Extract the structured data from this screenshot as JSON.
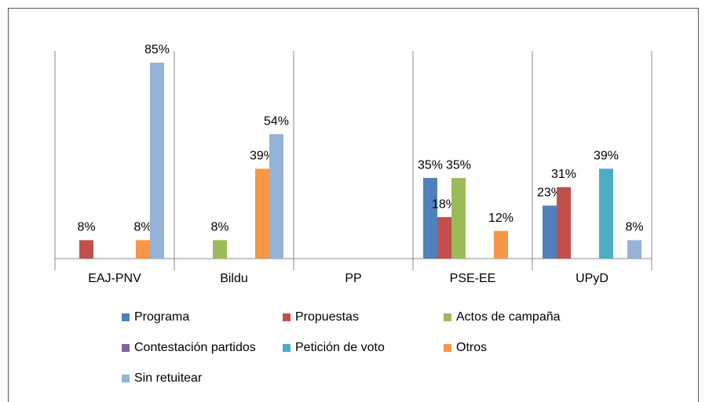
{
  "chart_data": {
    "type": "bar",
    "categories": [
      "EAJ-PNV",
      "Bildu",
      "PP",
      "PSE-EE",
      "UPyD"
    ],
    "series": [
      {
        "name": "Programa",
        "color": "#4f81bd",
        "values": [
          null,
          null,
          null,
          35,
          23
        ],
        "value_labels": [
          null,
          null,
          null,
          "35%",
          "23%"
        ]
      },
      {
        "name": "Propuestas",
        "color": "#c0504d",
        "values": [
          8,
          null,
          null,
          18,
          31
        ],
        "value_labels": [
          "8%",
          null,
          null,
          "18%",
          "31%"
        ]
      },
      {
        "name": "Actos de campaña",
        "color": "#9bbb59",
        "values": [
          null,
          8,
          null,
          35,
          null
        ],
        "value_labels": [
          null,
          "8%",
          null,
          "35%",
          null
        ]
      },
      {
        "name": "Contestación partidos",
        "color": "#8064a2",
        "values": [
          null,
          null,
          null,
          null,
          null
        ],
        "value_labels": [
          null,
          null,
          null,
          null,
          null
        ]
      },
      {
        "name": "Petición de voto",
        "color": "#4bacc6",
        "values": [
          null,
          null,
          null,
          null,
          39
        ],
        "value_labels": [
          null,
          null,
          null,
          null,
          "39%"
        ]
      },
      {
        "name": "Otros",
        "color": "#f79646",
        "values": [
          8,
          39,
          null,
          12,
          null
        ],
        "value_labels": [
          "8%",
          "39%",
          null,
          "12%",
          null
        ]
      },
      {
        "name": "Sin retuitear",
        "color": "#95b3d7",
        "values": [
          85,
          54,
          null,
          null,
          8
        ],
        "value_labels": [
          "85%",
          "54%",
          null,
          null,
          "8%"
        ]
      }
    ],
    "legend": "bottom"
  }
}
